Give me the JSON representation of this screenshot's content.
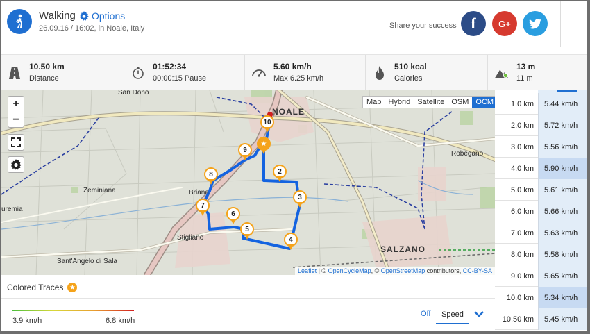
{
  "activity": {
    "title": "Walking",
    "options_label": "Options",
    "subtitle": "26.09.16 / 16:02, in Noale, Italy",
    "icon": "walking-person-icon"
  },
  "share": {
    "label": "Share your success",
    "facebook": "f",
    "googleplus": "G+",
    "twitter_icon": "twitter-bird-icon"
  },
  "stats": [
    {
      "value": "10.50 km",
      "label": "Distance",
      "icon": "road-icon"
    },
    {
      "value": "01:52:34",
      "label": "00:00:15 Pause",
      "icon": "stopwatch-icon"
    },
    {
      "value": "5.60 km/h",
      "label": "Max 6.25 km/h",
      "icon": "speedometer-icon"
    },
    {
      "value": "510 kcal",
      "label": "Calories",
      "icon": "flame-icon"
    },
    {
      "value": "13 m",
      "label": "11 m",
      "icon": "elevation-icon"
    }
  ],
  "map": {
    "zoom_in": "+",
    "zoom_out": "−",
    "layers": [
      "Map",
      "Hybrid",
      "Satellite",
      "OSM",
      "OCM"
    ],
    "active_layer": "OCM",
    "places": {
      "san_dono": "San Dono",
      "noale": "NOALE",
      "robegano": "Robegano",
      "zeminiana": "Zeminiana",
      "briana": "Briana",
      "stigliano": "Stigliano",
      "sant_angelo": "Sant'Angelo di Sala",
      "salzano": "SALZANO",
      "uremia": "uremia"
    },
    "markers": [
      "10",
      "9",
      "8",
      "2",
      "3",
      "7",
      "6",
      "5",
      "4"
    ],
    "attribution": {
      "leaflet": "Leaflet",
      "sep1": " | © ",
      "ocm": "OpenCycleMap",
      "sep2": ", © ",
      "osm": "OpenStreetMap",
      "sep3": " contributors, ",
      "license": "CC-BY-SA"
    }
  },
  "splits": [
    {
      "km": "1.0 km",
      "speed": "5.44 km/h"
    },
    {
      "km": "2.0 km",
      "speed": "5.72 km/h"
    },
    {
      "km": "3.0 km",
      "speed": "5.56 km/h"
    },
    {
      "km": "4.0 km",
      "speed": "5.90 km/h"
    },
    {
      "km": "5.0 km",
      "speed": "5.61 km/h"
    },
    {
      "km": "6.0 km",
      "speed": "5.66 km/h"
    },
    {
      "km": "7.0 km",
      "speed": "5.63 km/h"
    },
    {
      "km": "8.0 km",
      "speed": "5.58 km/h"
    },
    {
      "km": "9.0 km",
      "speed": "5.65 km/h"
    },
    {
      "km": "10.0 km",
      "speed": "5.34 km/h"
    },
    {
      "km": "10.50 km",
      "speed": "5.45 km/h"
    }
  ],
  "traces": {
    "title": "Colored Traces",
    "min": "3.9 km/h",
    "max": "6.8 km/h",
    "off_label": "Off",
    "mode": "Speed"
  },
  "colors": {
    "accent": "#1f6fd1",
    "route": "#1463e0",
    "marker": "#f5a31a",
    "facebook": "#2c4c87",
    "googleplus": "#d63a2f",
    "twitter": "#2a9ee0"
  }
}
